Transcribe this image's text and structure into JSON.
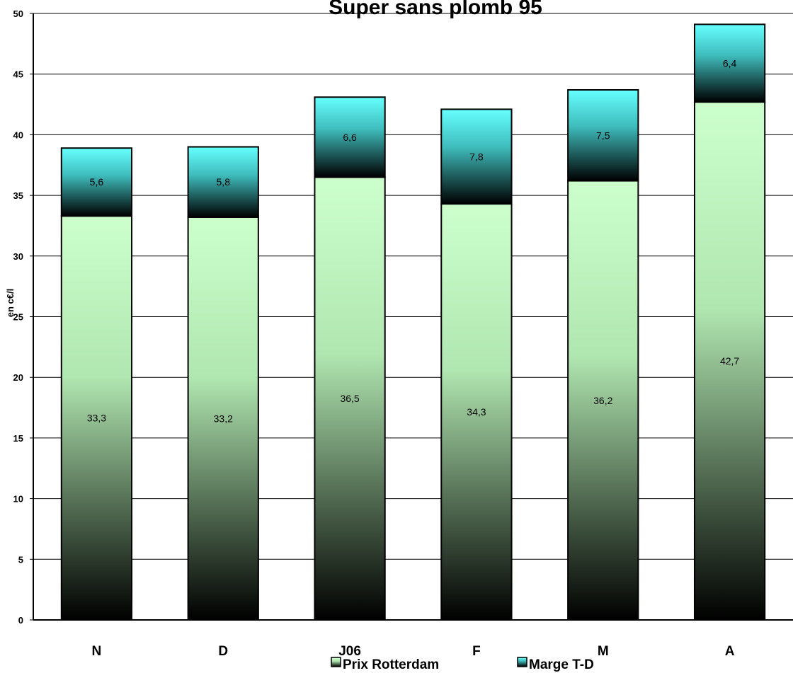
{
  "chart_data": {
    "type": "bar",
    "stacked": true,
    "title": "Super sans plomb 95",
    "ylabel": "en c€/l",
    "xlabel": "",
    "ylim": [
      0,
      50
    ],
    "yticks": [
      0,
      5,
      10,
      15,
      20,
      25,
      30,
      35,
      40,
      45,
      50
    ],
    "grid": true,
    "legend": "bottom",
    "categories": [
      "N",
      "D",
      "J06",
      "F",
      "M",
      "A"
    ],
    "series": [
      {
        "name": "Prix Rotterdam",
        "values": [
          33.3,
          33.2,
          36.5,
          34.3,
          36.2,
          42.7
        ],
        "labels": [
          "33,3",
          "33,2",
          "36,5",
          "34,3",
          "36,2",
          "42,7"
        ],
        "color_top": "#ccffcc",
        "color_bottom": "#000000"
      },
      {
        "name": "Marge T-D",
        "values": [
          5.6,
          5.8,
          6.6,
          7.8,
          7.5,
          6.4
        ],
        "labels": [
          "5,6",
          "5,8",
          "6,6",
          "7,8",
          "7,5",
          "6,4"
        ],
        "color_top": "#66ffff",
        "color_bottom": "#000000"
      }
    ]
  }
}
